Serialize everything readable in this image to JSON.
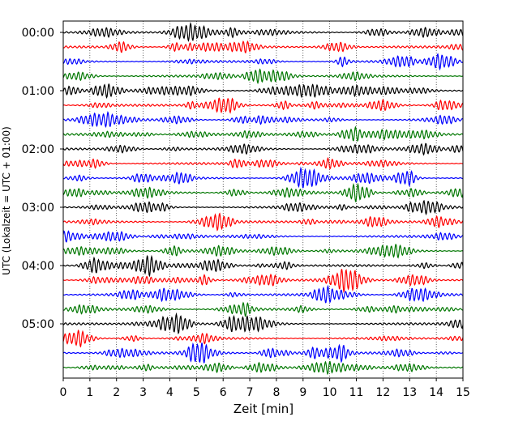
{
  "chart_data": {
    "type": "line",
    "title": "",
    "xlabel": "Zeit  [min]",
    "ylabel": "UTC (Lokalzeit = UTC + 01:00)",
    "xlim": [
      0,
      15
    ],
    "x_ticks": [
      "0",
      "1",
      "2",
      "3",
      "4",
      "5",
      "6",
      "7",
      "8",
      "9",
      "10",
      "11",
      "12",
      "13",
      "14",
      "15"
    ],
    "y_tick_labels": [
      "00:00",
      "01:00",
      "02:00",
      "03:00",
      "04:00",
      "05:00"
    ],
    "trace_interval_minutes": 15,
    "trace_count": 24,
    "grid": "vertical dotted",
    "color_cycle": [
      "#000000",
      "#ff0000",
      "#0000ff",
      "#007700"
    ],
    "series": [
      {
        "start": "00:00",
        "color": "#000000"
      },
      {
        "start": "00:15",
        "color": "#ff0000"
      },
      {
        "start": "00:30",
        "color": "#0000ff"
      },
      {
        "start": "00:45",
        "color": "#007700"
      },
      {
        "start": "01:00",
        "color": "#000000"
      },
      {
        "start": "01:15",
        "color": "#ff0000"
      },
      {
        "start": "01:30",
        "color": "#0000ff"
      },
      {
        "start": "01:45",
        "color": "#007700"
      },
      {
        "start": "02:00",
        "color": "#000000"
      },
      {
        "start": "02:15",
        "color": "#ff0000"
      },
      {
        "start": "02:30",
        "color": "#0000ff"
      },
      {
        "start": "02:45",
        "color": "#007700"
      },
      {
        "start": "03:00",
        "color": "#000000"
      },
      {
        "start": "03:15",
        "color": "#ff0000"
      },
      {
        "start": "03:30",
        "color": "#0000ff"
      },
      {
        "start": "03:45",
        "color": "#007700"
      },
      {
        "start": "04:00",
        "color": "#000000"
      },
      {
        "start": "04:15",
        "color": "#ff0000"
      },
      {
        "start": "04:30",
        "color": "#0000ff"
      },
      {
        "start": "04:45",
        "color": "#007700"
      },
      {
        "start": "05:00",
        "color": "#000000"
      },
      {
        "start": "05:15",
        "color": "#ff0000"
      },
      {
        "start": "05:30",
        "color": "#0000ff"
      },
      {
        "start": "05:45",
        "color": "#007700"
      }
    ]
  }
}
